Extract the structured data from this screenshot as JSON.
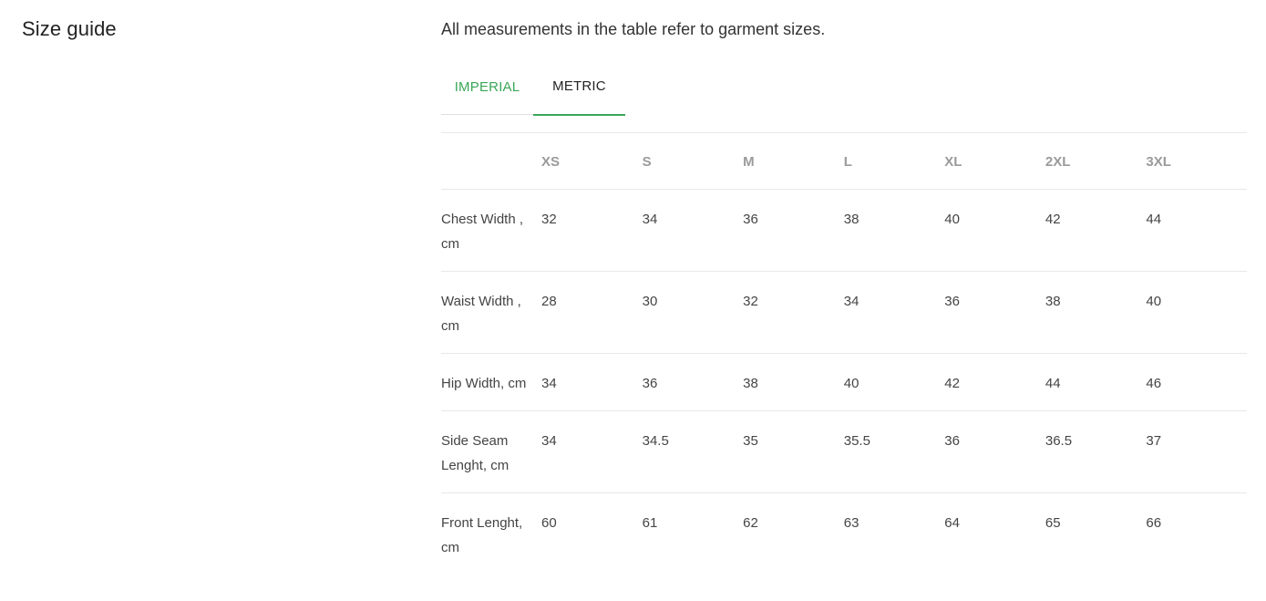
{
  "page": {
    "title": "Size guide",
    "intro": "All measurements in the table refer to garment sizes."
  },
  "tabs": [
    {
      "label": "IMPERIAL",
      "active": false
    },
    {
      "label": "METRIC",
      "active": true
    }
  ],
  "colors": {
    "accent": "#3aa657",
    "header_text": "#9a9a9a",
    "divider": "#e8e8e8"
  },
  "table": {
    "headers": [
      "",
      "XS",
      "S",
      "M",
      "L",
      "XL",
      "2XL",
      "3XL"
    ],
    "rows": [
      {
        "label": "Chest Width , cm",
        "values": [
          "32",
          "34",
          "36",
          "38",
          "40",
          "42",
          "44"
        ]
      },
      {
        "label": "Waist Width , cm",
        "values": [
          "28",
          "30",
          "32",
          "34",
          "36",
          "38",
          "40"
        ]
      },
      {
        "label": "Hip Width, cm",
        "values": [
          "34",
          "36",
          "38",
          "40",
          "42",
          "44",
          "46"
        ]
      },
      {
        "label": "Side Seam Lenght, cm",
        "values": [
          "34",
          "34.5",
          "35",
          "35.5",
          "36",
          "36.5",
          "37"
        ]
      },
      {
        "label": "Front Lenght, cm",
        "values": [
          "60",
          "61",
          "62",
          "63",
          "64",
          "65",
          "66"
        ]
      }
    ]
  }
}
